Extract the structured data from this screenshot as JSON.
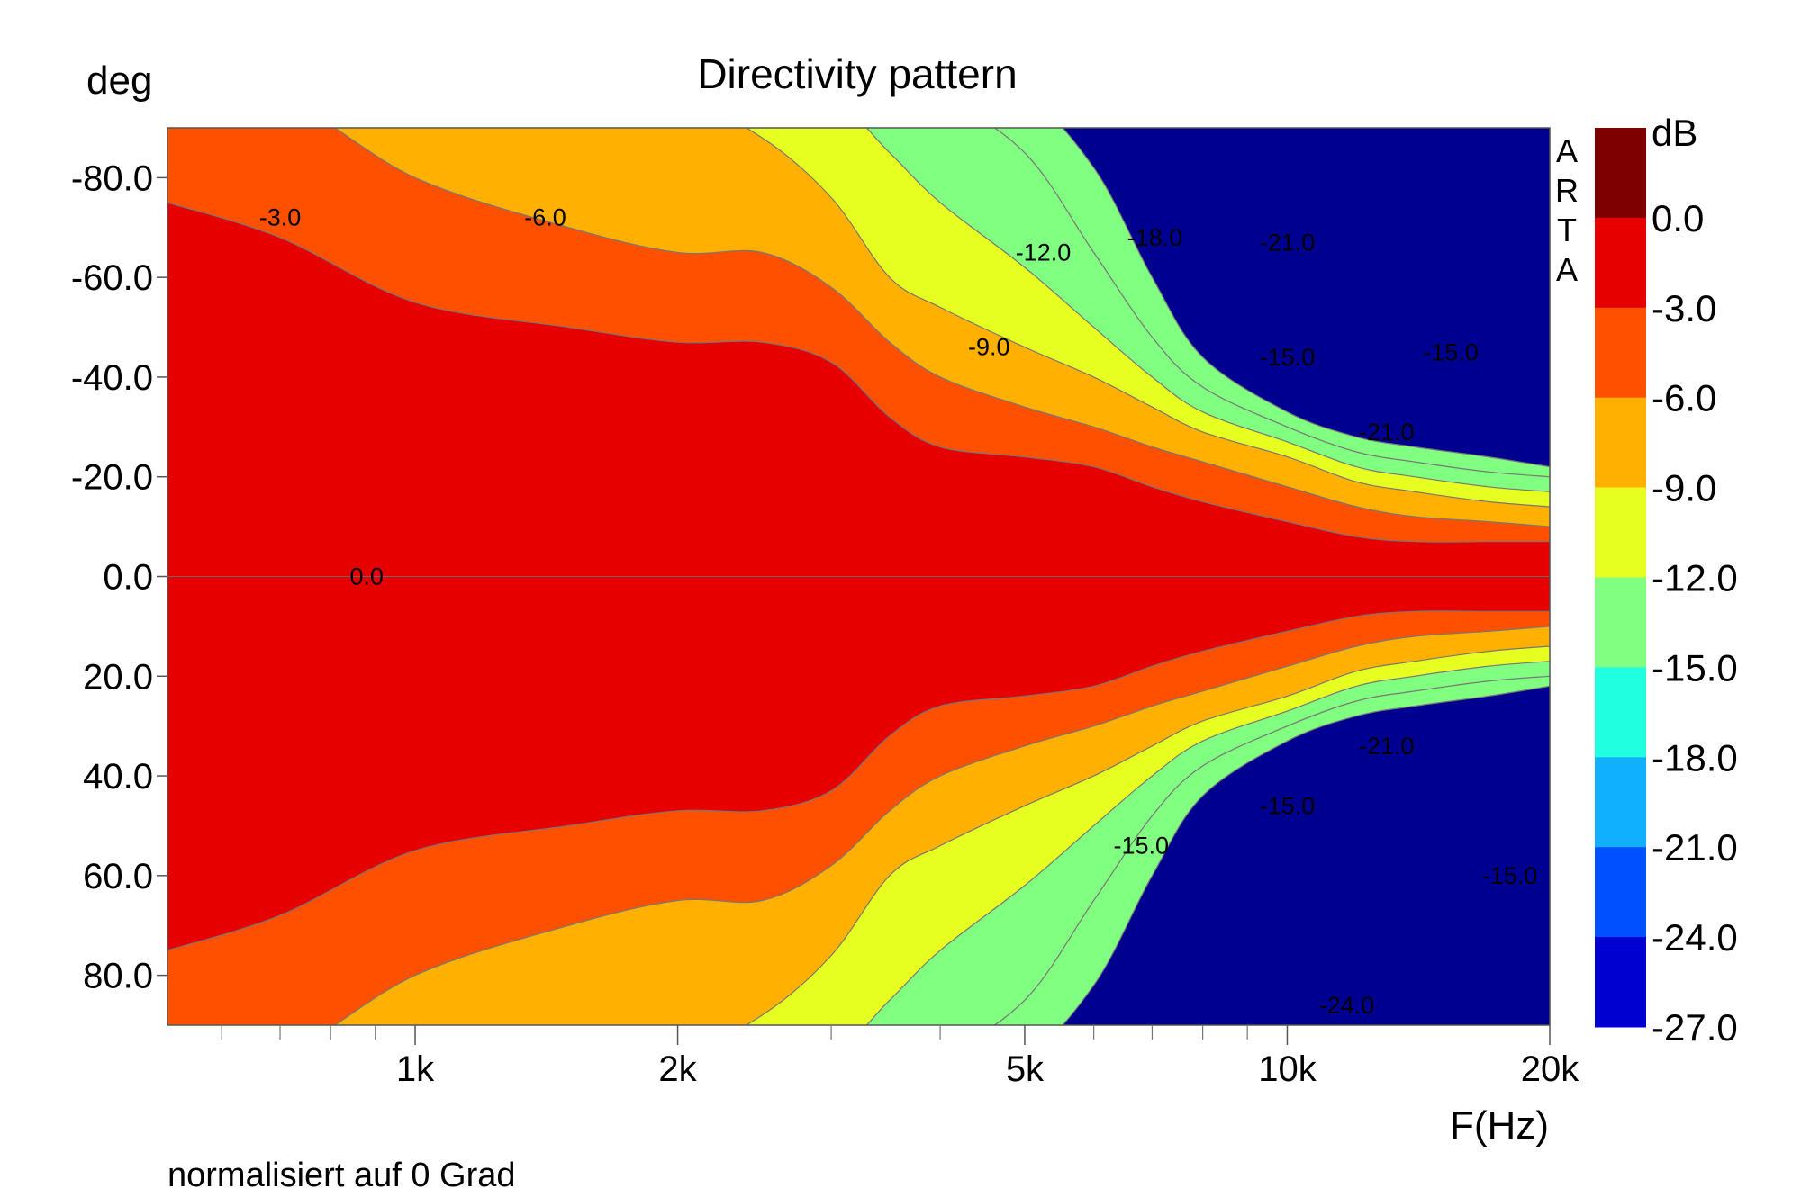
{
  "chart_data": {
    "type": "heatmap",
    "title": "Directivity pattern",
    "xlabel": "F(Hz)",
    "ylabel": "deg",
    "x_scale": "log",
    "xlim": [
      520,
      20000
    ],
    "ylim": [
      -90,
      90
    ],
    "x_ticks": [
      {
        "value": 1000,
        "label": "1k"
      },
      {
        "value": 2000,
        "label": "2k"
      },
      {
        "value": 5000,
        "label": "5k"
      },
      {
        "value": 10000,
        "label": "10k"
      },
      {
        "value": 20000,
        "label": "20k"
      }
    ],
    "x_minor_ticks": [
      600,
      700,
      800,
      900,
      3000,
      4000,
      6000,
      7000,
      8000,
      9000
    ],
    "y_ticks": [
      {
        "value": -80,
        "label": "-80.0"
      },
      {
        "value": -60,
        "label": "-60.0"
      },
      {
        "value": -40,
        "label": "-40.0"
      },
      {
        "value": -20,
        "label": "-20.0"
      },
      {
        "value": 0,
        "label": "0.0"
      },
      {
        "value": 20,
        "label": "20.0"
      },
      {
        "value": 40,
        "label": "40.0"
      },
      {
        "value": 60,
        "label": "60.0"
      },
      {
        "value": 80,
        "label": "80.0"
      }
    ],
    "colorbar": {
      "unit": "dB",
      "levels": [
        {
          "label": "0.0",
          "color": "#7f0000"
        },
        {
          "label": "-3.0",
          "color": "#e60000"
        },
        {
          "label": "-6.0",
          "color": "#ff5000"
        },
        {
          "label": "-9.0",
          "color": "#ffb000"
        },
        {
          "label": "-12.0",
          "color": "#e6ff20"
        },
        {
          "label": "-15.0",
          "color": "#80ff80"
        },
        {
          "label": "-18.0",
          "color": "#20ffe0"
        },
        {
          "label": "-21.0",
          "color": "#10b0ff"
        },
        {
          "label": "-24.0",
          "color": "#0050ff"
        },
        {
          "label": "-27.0",
          "color": "#0000d0"
        }
      ],
      "bottom_color": "#000090"
    },
    "contour_boundaries_deg": {
      "x": [
        520,
        700,
        1000,
        1500,
        2000,
        2500,
        3000,
        3500,
        4000,
        5000,
        6000,
        7000,
        8000,
        10000,
        12000,
        14000,
        17000,
        20000
      ],
      "0.0": [
        75,
        68,
        55,
        50,
        47,
        47,
        43,
        32,
        26,
        24,
        22,
        18,
        15,
        11,
        8,
        7,
        7,
        7
      ],
      "-3.0": [
        90,
        90,
        80,
        70,
        65,
        65,
        58,
        47,
        40,
        34,
        30,
        26,
        23,
        18,
        14,
        12,
        11,
        10
      ],
      "-6.0": [
        90,
        90,
        90,
        90,
        90,
        88,
        76,
        60,
        54,
        46,
        40,
        34,
        29,
        24,
        19,
        17,
        15,
        14
      ],
      "-9.0": [
        90,
        90,
        90,
        90,
        90,
        90,
        90,
        85,
        75,
        62,
        50,
        40,
        33,
        27,
        22,
        20,
        18,
        17
      ],
      "-12.0": [
        90,
        90,
        90,
        90,
        90,
        90,
        90,
        90,
        90,
        85,
        65,
        48,
        38,
        30,
        25,
        23,
        21,
        20
      ],
      "-15.0": [
        90,
        90,
        90,
        90,
        90,
        90,
        90,
        90,
        90,
        90,
        82,
        60,
        44,
        33,
        28,
        26,
        24,
        22
      ]
    },
    "contour_labels": [
      {
        "x": 700,
        "y": -72,
        "text": "-3.0"
      },
      {
        "x": 1410,
        "y": -72,
        "text": "-6.0"
      },
      {
        "x": 5250,
        "y": -65,
        "text": "-12.0"
      },
      {
        "x": 7050,
        "y": -68,
        "text": "-18.0"
      },
      {
        "x": 10000,
        "y": -67,
        "text": "-21.0"
      },
      {
        "x": 4550,
        "y": -46,
        "text": "-9.0"
      },
      {
        "x": 10000,
        "y": -44,
        "text": "-15.0"
      },
      {
        "x": 15400,
        "y": -45,
        "text": "-15.0"
      },
      {
        "x": 13000,
        "y": -29,
        "text": "-21.0"
      },
      {
        "x": 880,
        "y": 0,
        "text": "0.0"
      },
      {
        "x": 13000,
        "y": 34,
        "text": "-21.0"
      },
      {
        "x": 10000,
        "y": 46,
        "text": "-15.0"
      },
      {
        "x": 6800,
        "y": 54,
        "text": "-15.0"
      },
      {
        "x": 18000,
        "y": 60,
        "text": "-15.0"
      },
      {
        "x": 11700,
        "y": 86,
        "text": "-24.0"
      }
    ]
  },
  "brand": {
    "letters": [
      "A",
      "R",
      "T",
      "A"
    ]
  },
  "footer_note": "normalisiert auf 0 Grad"
}
